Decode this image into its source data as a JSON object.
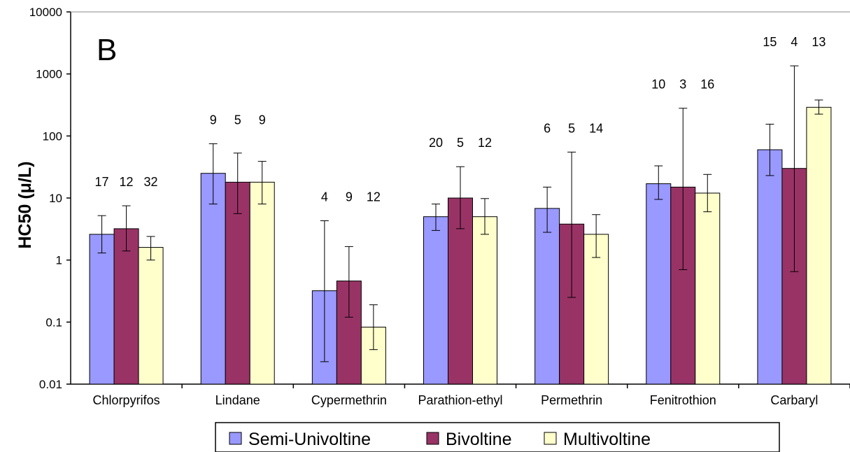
{
  "chart_data": {
    "type": "bar",
    "panel_label": "B",
    "ylabel": "HC50 (μ/L)",
    "yscale": "log",
    "ylim": [
      0.01,
      10000
    ],
    "yticks": [
      {
        "value": 0.01,
        "label": "0.01"
      },
      {
        "value": 0.1,
        "label": "0.1"
      },
      {
        "value": 1,
        "label": "1"
      },
      {
        "value": 10,
        "label": "10"
      },
      {
        "value": 100,
        "label": "100"
      },
      {
        "value": 1000,
        "label": "1000"
      },
      {
        "value": 10000,
        "label": "10000"
      }
    ],
    "grid": false,
    "legend_position": "bottom",
    "categories": [
      "Chlorpyrifos",
      "Lindane",
      "Cypermethrin",
      "Parathion-ethyl",
      "Permethrin",
      "Fenitrothion",
      "Carbaryl"
    ],
    "series": [
      {
        "name": "Semi-Univoltine",
        "color": "#9999ff",
        "values": [
          2.6,
          25,
          0.32,
          5,
          6.8,
          17,
          60
        ],
        "err_low": [
          1.3,
          8,
          0.023,
          3,
          2.8,
          9.5,
          23
        ],
        "err_high": [
          5.2,
          75,
          4.3,
          8,
          15,
          33,
          155
        ],
        "n": [
          "17",
          "9",
          "4",
          "20",
          "6",
          "10",
          "15"
        ]
      },
      {
        "name": "Bivoltine",
        "color": "#993366",
        "values": [
          3.2,
          18,
          0.46,
          10,
          3.8,
          15,
          30
        ],
        "err_low": [
          1.4,
          5.6,
          0.12,
          3.2,
          0.25,
          0.7,
          0.65
        ],
        "err_high": [
          7.5,
          53,
          1.65,
          32,
          55,
          280,
          1350
        ],
        "n": [
          "12",
          "5",
          "9",
          "5",
          "5",
          "3",
          "4"
        ]
      },
      {
        "name": "Multivoltine",
        "color": "#ffffcc",
        "values": [
          1.6,
          18,
          0.083,
          5,
          2.6,
          12,
          290
        ],
        "err_low": [
          1.0,
          8,
          0.036,
          2.6,
          1.1,
          6,
          225
        ],
        "err_high": [
          2.4,
          39,
          0.19,
          9.8,
          5.4,
          24,
          380
        ],
        "n": [
          "32",
          "9",
          "12",
          "12",
          "14",
          "16",
          "13"
        ]
      }
    ]
  }
}
